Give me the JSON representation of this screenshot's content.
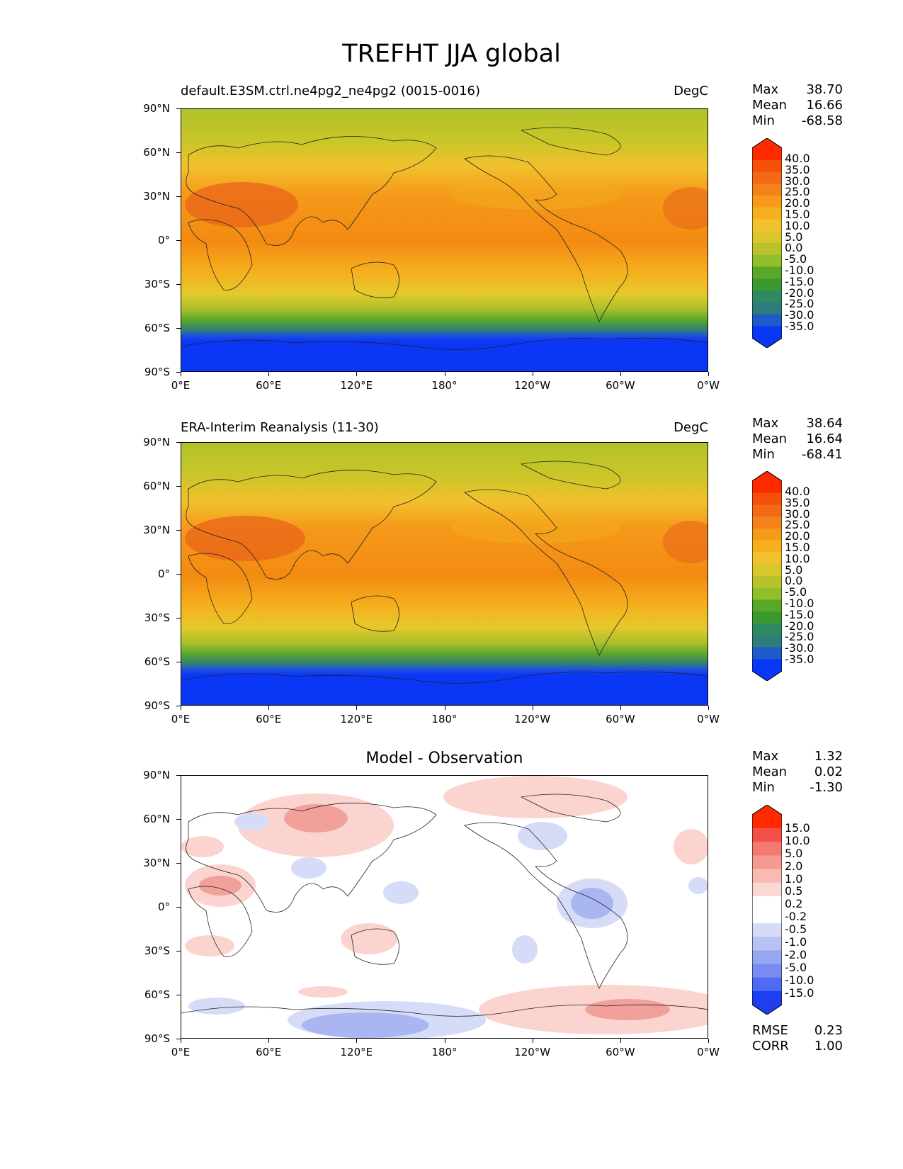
{
  "title": "TREFHT JJA global",
  "panels": [
    {
      "title_left": "default.E3SM.ctrl.ne4pg2_ne4pg2 (0015-0016)",
      "title_right": "DegC",
      "stats": {
        "Max": "38.70",
        "Mean": "16.66",
        "Min": "-68.58"
      },
      "colorbar": [
        "40.0",
        "35.0",
        "30.0",
        "25.0",
        "20.0",
        "15.0",
        "10.0",
        "5.0",
        "0.0",
        "-5.0",
        "-10.0",
        "-15.0",
        "-20.0",
        "-25.0",
        "-30.0",
        "-35.0"
      ]
    },
    {
      "title_left": "ERA-Interim Reanalysis (11-30)",
      "title_right": "DegC",
      "stats": {
        "Max": "38.64",
        "Mean": "16.64",
        "Min": "-68.41"
      },
      "colorbar": [
        "40.0",
        "35.0",
        "30.0",
        "25.0",
        "20.0",
        "15.0",
        "10.0",
        "5.0",
        "0.0",
        "-5.0",
        "-10.0",
        "-15.0",
        "-20.0",
        "-25.0",
        "-30.0",
        "-35.0"
      ]
    },
    {
      "title_center": "Model - Observation",
      "stats": {
        "Max": "1.32",
        "Mean": "0.02",
        "Min": "-1.30"
      },
      "colorbar": [
        "15.0",
        "10.0",
        "5.0",
        "2.0",
        "1.0",
        "0.5",
        "0.2",
        "-0.2",
        "-0.5",
        "-1.0",
        "-2.0",
        "-5.0",
        "-10.0",
        "-15.0"
      ],
      "metrics": {
        "RMSE": "0.23",
        "CORR": "1.00"
      }
    }
  ],
  "axes": {
    "lat_labels": [
      "90°N",
      "60°N",
      "30°N",
      "0°",
      "30°S",
      "60°S",
      "90°S"
    ],
    "lon_labels": [
      "0°E",
      "60°E",
      "120°E",
      "180°",
      "120°W",
      "60°W",
      "0°W"
    ]
  },
  "colors": {
    "warm": "#f08a10",
    "hot": "#e8601a",
    "yellow": "#f2c12e",
    "green": "#8fbf2a",
    "cold": "#1e3ef0",
    "diff_pos": "#f4a6a0",
    "diff_neg": "#aab6f2"
  }
}
